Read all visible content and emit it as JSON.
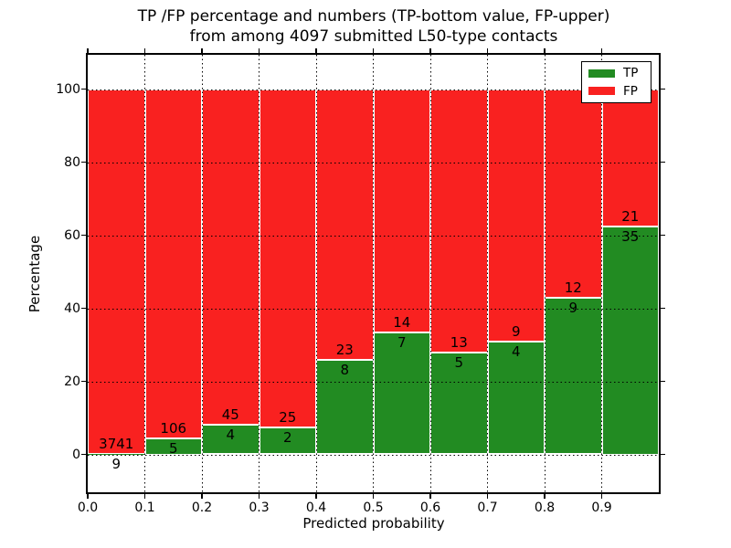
{
  "figure": {
    "title_line1": "TP /FP percentage and numbers (TP-bottom value, FP-upper)",
    "title_line2": "from among 4097 submitted L50-type contacts"
  },
  "axes": {
    "xlabel": "Predicted probability",
    "ylabel": "Percentage",
    "x_tick_labels": [
      "0.0",
      "0.1",
      "0.2",
      "0.3",
      "0.4",
      "0.5",
      "0.6",
      "0.7",
      "0.8",
      "0.9"
    ],
    "y_tick_labels": [
      "0",
      "20",
      "40",
      "60",
      "80",
      "100"
    ]
  },
  "legend": {
    "items": [
      {
        "label": "TP",
        "color": "#228b22"
      },
      {
        "label": "FP",
        "color": "#f92120"
      }
    ]
  },
  "chart_data": {
    "type": "bar",
    "subtype": "stacked-100pct-histogram",
    "title": "TP /FP percentage and numbers (TP-bottom value, FP-upper) from among 4097 submitted L50-type contacts",
    "xlabel": "Predicted probability",
    "ylabel": "Percentage",
    "total_contacts": 4097,
    "bin_width": 0.1,
    "categories": [
      "0.0-0.1",
      "0.1-0.2",
      "0.2-0.3",
      "0.3-0.4",
      "0.4-0.5",
      "0.5-0.6",
      "0.6-0.7",
      "0.7-0.8",
      "0.8-0.9",
      "0.9-1.0"
    ],
    "x_ticks": [
      0.0,
      0.1,
      0.2,
      0.3,
      0.4,
      0.5,
      0.6,
      0.7,
      0.8,
      0.9
    ],
    "y_ticks": [
      0,
      20,
      40,
      60,
      80,
      100
    ],
    "xlim": [
      0,
      1
    ],
    "ylim_display": [
      -10.3,
      109.6
    ],
    "grid": "dotted, drawn over bars",
    "bar_edge_color": "#ffffff",
    "legend_position": "upper right",
    "label_convention": "FP count printed above TP/FP boundary, TP count printed below it",
    "series": [
      {
        "name": "TP",
        "color": "#228b22",
        "counts": [
          9,
          5,
          4,
          2,
          8,
          7,
          5,
          4,
          9,
          35
        ],
        "percentages": [
          0.24,
          4.5,
          8.16,
          7.41,
          25.81,
          33.33,
          27.78,
          30.77,
          42.86,
          62.5
        ]
      },
      {
        "name": "FP",
        "color": "#f92120",
        "counts": [
          3741,
          106,
          45,
          25,
          23,
          14,
          13,
          9,
          12,
          21
        ],
        "percentages": [
          99.76,
          95.5,
          91.84,
          92.59,
          74.19,
          66.67,
          72.22,
          69.23,
          57.14,
          37.5
        ]
      }
    ]
  }
}
